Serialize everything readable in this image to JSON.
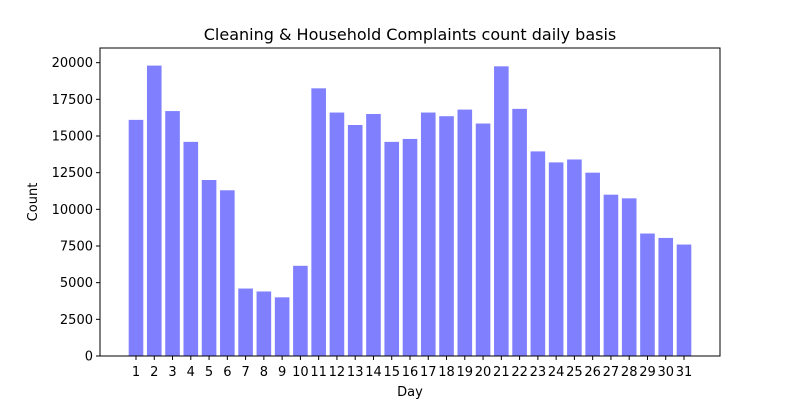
{
  "chart_data": {
    "type": "bar",
    "title": "Cleaning & Household Complaints count daily basis",
    "xlabel": "Day",
    "ylabel": "Count",
    "ylim": [
      0,
      21000
    ],
    "yticks": [
      0,
      2500,
      5000,
      7500,
      10000,
      12500,
      15000,
      17500,
      20000
    ],
    "categories": [
      "1",
      "2",
      "3",
      "4",
      "5",
      "6",
      "7",
      "8",
      "9",
      "10",
      "11",
      "12",
      "13",
      "14",
      "15",
      "16",
      "17",
      "18",
      "19",
      "20",
      "21",
      "22",
      "23",
      "24",
      "25",
      "26",
      "27",
      "28",
      "29",
      "30",
      "31"
    ],
    "values": [
      16100,
      19800,
      16700,
      14600,
      12000,
      11300,
      4600,
      4400,
      4000,
      6150,
      18250,
      16600,
      15750,
      16500,
      14600,
      14800,
      16600,
      16350,
      16800,
      15850,
      19750,
      16850,
      13950,
      13200,
      13400,
      12500,
      11000,
      10750,
      8350,
      8050,
      7600
    ],
    "bar_color": "#8080ff",
    "grid": false,
    "legend": "none"
  }
}
